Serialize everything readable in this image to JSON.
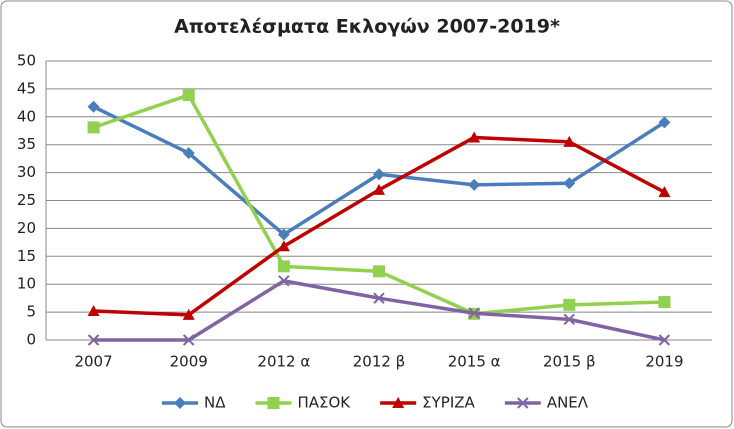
{
  "chart_data": {
    "type": "line",
    "title": "Αποτελέσματα Εκλογών 2007-2019*",
    "categories": [
      "2007",
      "2009",
      "2012 α",
      "2012 β",
      "2015 α",
      "2015 β",
      "2019"
    ],
    "series": [
      {
        "name": "ΝΔ",
        "color": "#4a7ebb",
        "marker": "diamond",
        "values": [
          41.8,
          33.5,
          18.9,
          29.7,
          27.8,
          28.1,
          39.0
        ]
      },
      {
        "name": "ΠΑΣΟΚ",
        "color": "#92d050",
        "marker": "square",
        "values": [
          38.1,
          43.9,
          13.2,
          12.3,
          4.7,
          6.3,
          6.8
        ]
      },
      {
        "name": "ΣΥΡΙΖΑ",
        "color": "#c00000",
        "marker": "triangle",
        "values": [
          5.2,
          4.5,
          16.8,
          26.9,
          36.3,
          35.5,
          26.5
        ]
      },
      {
        "name": "ΑΝΕΛ",
        "color": "#8064a2",
        "marker": "x",
        "values": [
          0,
          0,
          10.6,
          7.5,
          4.8,
          3.7,
          0
        ]
      }
    ],
    "ylim": [
      0,
      50
    ],
    "yticks": [
      0,
      5,
      10,
      15,
      20,
      25,
      30,
      35,
      40,
      45,
      50
    ],
    "grid": true,
    "legend": "bottom"
  }
}
